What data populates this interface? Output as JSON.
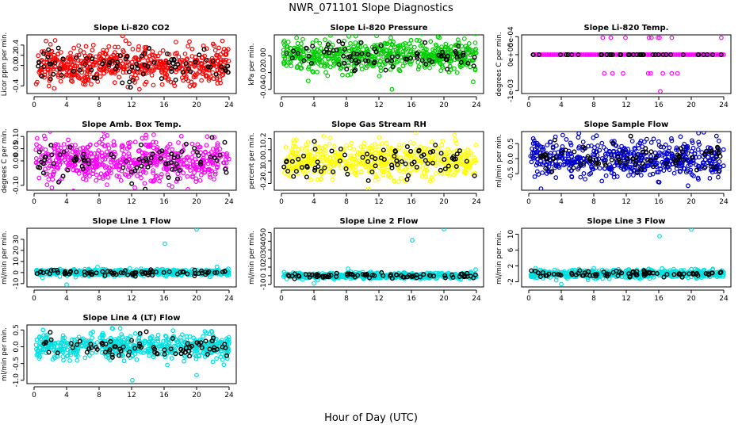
{
  "figure": {
    "title": "NWR_071101  Slope Diagnostics",
    "xlabel": "Hour of Day (UTC)"
  },
  "chart_data": [
    {
      "type": "scatter",
      "title": "Slope Li-820 CO2",
      "ylabel": "Licor ppm per min.",
      "color": "#ff0000",
      "xlim": [
        0,
        24
      ],
      "xticks": [
        "0",
        "4",
        "8",
        "12",
        "16",
        "20",
        "24"
      ],
      "ylim": [
        -0.55,
        0.6
      ],
      "yticks": [
        {
          "v": -0.4,
          "label": "-0.4"
        },
        {
          "v": 0,
          "label": "0.0"
        },
        {
          "v": 0.2,
          "label": "0.2"
        },
        {
          "v": 0.4,
          "label": "0.4"
        }
      ],
      "spread": 0.18,
      "noise": 0.05,
      "count": 560,
      "black_count": 80,
      "outliers": [
        {
          "x": 10.9,
          "y": 0.58
        },
        {
          "x": 7.3,
          "y": 0.4
        },
        {
          "x": 6.3,
          "y": -0.37
        }
      ]
    },
    {
      "type": "scatter",
      "title": "Slope Li-820 Pressure",
      "ylabel": "kPa per min.",
      "color": "#00cc00",
      "xlim": [
        0,
        24
      ],
      "xticks": [
        "0",
        "4",
        "8",
        "12",
        "16",
        "20",
        "24"
      ],
      "ylim": [
        -0.045,
        0.025
      ],
      "yticks": [
        {
          "v": -0.04,
          "label": "-0.04"
        },
        {
          "v": -0.02,
          "label": "-0.02"
        },
        {
          "v": 0,
          "label": "0.00"
        }
      ],
      "spread": 0.009,
      "noise": 0.003,
      "count": 560,
      "black_count": 80,
      "outliers": [
        {
          "x": 3.3,
          "y": -0.03
        },
        {
          "x": 13.6,
          "y": -0.04
        },
        {
          "x": 23.6,
          "y": -0.031
        }
      ]
    },
    {
      "type": "scatter",
      "title": "Slope Li-820 Temp.",
      "ylabel": "degrees C per min.",
      "color": "#ff00ff",
      "xlim": [
        0,
        24
      ],
      "xticks": [
        "0",
        "4",
        "8",
        "12",
        "16",
        "20",
        "24"
      ],
      "ylim": [
        -0.00108,
        0.00055
      ],
      "yticks": [
        {
          "v": -0.001,
          "label": "-1e-03"
        },
        {
          "v": 0,
          "label": "0e+00"
        },
        {
          "v": 0.0005,
          "label": "5e-04"
        }
      ],
      "baseline": 0,
      "line_count": 130,
      "black_count": 40,
      "points": [
        {
          "x": 9.1,
          "y": 0.00047
        },
        {
          "x": 10.1,
          "y": 0.00047
        },
        {
          "x": 11.9,
          "y": 0.00047
        },
        {
          "x": 14.8,
          "y": 0.00047
        },
        {
          "x": 15.1,
          "y": 0.00047
        },
        {
          "x": 15.9,
          "y": 0.00047
        },
        {
          "x": 16.1,
          "y": 0.00047
        },
        {
          "x": 17.6,
          "y": 0.00047
        },
        {
          "x": 23.7,
          "y": 0.00047
        },
        {
          "x": 9.3,
          "y": -0.00052
        },
        {
          "x": 10.3,
          "y": -0.00052
        },
        {
          "x": 11.6,
          "y": -0.00052
        },
        {
          "x": 14.7,
          "y": -0.00052
        },
        {
          "x": 15.0,
          "y": -0.00052
        },
        {
          "x": 16.5,
          "y": -0.00052
        },
        {
          "x": 17.6,
          "y": -0.00052
        },
        {
          "x": 18.3,
          "y": -0.00052
        },
        {
          "x": 16.2,
          "y": -0.00102
        }
      ]
    },
    {
      "type": "scatter",
      "title": "Slope Amb. Box Temp.",
      "ylabel": "degrees C per min.",
      "color": "#ff00ff",
      "xlim": [
        0,
        24
      ],
      "xticks": [
        "0",
        "4",
        "8",
        "12",
        "16",
        "20",
        "24"
      ],
      "ylim": [
        -0.12,
        0.12
      ],
      "yticks": [
        {
          "v": -0.1,
          "label": "-0.10"
        },
        {
          "v": 0,
          "label": "0.00"
        },
        {
          "v": 0.05,
          "label": "0.05"
        },
        {
          "v": 0.1,
          "label": "0.10"
        }
      ],
      "spread": 0.045,
      "noise": 0.012,
      "count": 560,
      "black_count": 80,
      "outliers": [
        {
          "x": 2.2,
          "y": -0.11
        },
        {
          "x": 12.4,
          "y": -0.11
        },
        {
          "x": 21.3,
          "y": 0.1
        }
      ]
    },
    {
      "type": "scatter",
      "title": "Slope Gas Stream RH",
      "ylabel": "percent per min.",
      "color": "#ffff00",
      "xlim": [
        0,
        24
      ],
      "xticks": [
        "0",
        "4",
        "8",
        "12",
        "16",
        "20",
        "24"
      ],
      "ylim": [
        -0.26,
        0.26
      ],
      "yticks": [
        {
          "v": -0.2,
          "label": "-0.2"
        },
        {
          "v": -0.1,
          "label": "-0.1"
        },
        {
          "v": 0,
          "label": "0.0"
        },
        {
          "v": 0.1,
          "label": "0.1"
        },
        {
          "v": 0.2,
          "label": "0.2"
        }
      ],
      "spread": 0.075,
      "noise": 0.02,
      "count": 560,
      "black_count": 80,
      "outliers": [
        {
          "x": 16.6,
          "y": 0.25
        },
        {
          "x": 5.2,
          "y": 0.22
        },
        {
          "x": 10.7,
          "y": -0.25
        }
      ]
    },
    {
      "type": "scatter",
      "title": "Slope Sample Flow",
      "ylabel": "ml/min per min.",
      "color": "#0000cc",
      "xlim": [
        0,
        24
      ],
      "xticks": [
        "0",
        "4",
        "8",
        "12",
        "16",
        "20",
        "24"
      ],
      "ylim": [
        -1.05,
        0.9
      ],
      "yticks": [
        {
          "v": -0.5,
          "label": "-0.5"
        },
        {
          "v": 0,
          "label": "0.0"
        },
        {
          "v": 0.5,
          "label": "0.5"
        }
      ],
      "spread": 0.3,
      "noise": 0.08,
      "count": 560,
      "black_count": 80,
      "outliers": [
        {
          "x": 1.5,
          "y": -1.0
        },
        {
          "x": 20.9,
          "y": 0.85
        },
        {
          "x": 23.1,
          "y": 0.75
        },
        {
          "x": 19.6,
          "y": -0.9
        }
      ]
    },
    {
      "type": "scatter",
      "title": "Slope Line 1 Flow",
      "ylabel": "ml/min per min.",
      "color": "#00e0e0",
      "xlim": [
        0,
        24
      ],
      "xticks": [
        "0",
        "4",
        "8",
        "12",
        "16",
        "20",
        "24"
      ],
      "ylim": [
        -13,
        40
      ],
      "yticks": [
        {
          "v": -10,
          "label": "-10"
        },
        {
          "v": 0,
          "label": "0"
        },
        {
          "v": 10,
          "label": "10"
        },
        {
          "v": 20,
          "label": "20"
        },
        {
          "v": 30,
          "label": "30"
        }
      ],
      "spread": 1.4,
      "noise": 0.5,
      "count": 560,
      "black_count": 80,
      "outliers": [
        {
          "x": 16.1,
          "y": 26
        },
        {
          "x": 20.0,
          "y": 39
        },
        {
          "x": 4.0,
          "y": -11
        },
        {
          "x": 7.8,
          "y": 5
        }
      ]
    },
    {
      "type": "scatter",
      "title": "Slope Line 2 Flow",
      "ylabel": "ml/min per min.",
      "color": "#00e0e0",
      "xlim": [
        0,
        24
      ],
      "xticks": [
        "0",
        "4",
        "8",
        "12",
        "16",
        "20",
        "24"
      ],
      "ylim": [
        -13,
        55
      ],
      "yticks": [
        {
          "v": -10,
          "label": "-10"
        },
        {
          "v": 0,
          "label": "0"
        },
        {
          "v": 10,
          "label": "10"
        },
        {
          "v": 20,
          "label": "20"
        },
        {
          "v": 30,
          "label": "30"
        },
        {
          "v": 40,
          "label": "40"
        },
        {
          "v": 50,
          "label": "50"
        }
      ],
      "spread": 1.6,
      "noise": 0.5,
      "count": 560,
      "black_count": 80,
      "outliers": [
        {
          "x": 16.1,
          "y": 41
        },
        {
          "x": 20.0,
          "y": 54
        },
        {
          "x": 4.0,
          "y": -9
        },
        {
          "x": 8.2,
          "y": 8
        },
        {
          "x": 23.9,
          "y": 7
        }
      ]
    },
    {
      "type": "scatter",
      "title": "Slope Line 3 Flow",
      "ylabel": "ml/min per min.",
      "color": "#00e0e0",
      "xlim": [
        0,
        24
      ],
      "xticks": [
        "0",
        "4",
        "8",
        "12",
        "16",
        "20",
        "24"
      ],
      "ylim": [
        -3.3,
        11.5
      ],
      "yticks": [
        {
          "v": -2,
          "label": "-2"
        },
        {
          "v": 2,
          "label": "2"
        },
        {
          "v": 6,
          "label": "6"
        },
        {
          "v": 10,
          "label": "10"
        }
      ],
      "spread": 0.5,
      "noise": 0.15,
      "count": 560,
      "black_count": 80,
      "outliers": [
        {
          "x": 16.1,
          "y": 9.5
        },
        {
          "x": 20.0,
          "y": 11.2
        },
        {
          "x": 4.0,
          "y": -2.6
        },
        {
          "x": 8.0,
          "y": 1.4
        }
      ]
    },
    {
      "type": "scatter",
      "title": "Slope Line 4 (LT) Flow",
      "ylabel": "ml/min per min.",
      "color": "#00e0e0",
      "xlim": [
        0,
        24
      ],
      "xticks": [
        "0",
        "4",
        "8",
        "12",
        "16",
        "20",
        "24"
      ],
      "ylim": [
        -1.1,
        0.65
      ],
      "yticks": [
        {
          "v": -1,
          "label": "-1.0"
        },
        {
          "v": -0.5,
          "label": "-0.5"
        },
        {
          "v": 0,
          "label": "0.0"
        },
        {
          "v": 0.5,
          "label": "0.5"
        }
      ],
      "spread": 0.18,
      "noise": 0.05,
      "count": 560,
      "black_count": 80,
      "outliers": [
        {
          "x": 12.1,
          "y": -1.0
        },
        {
          "x": 20.0,
          "y": -0.85
        },
        {
          "x": 9.6,
          "y": 0.55
        },
        {
          "x": 10.6,
          "y": 0.55
        },
        {
          "x": 1.1,
          "y": 0.5
        }
      ]
    }
  ]
}
